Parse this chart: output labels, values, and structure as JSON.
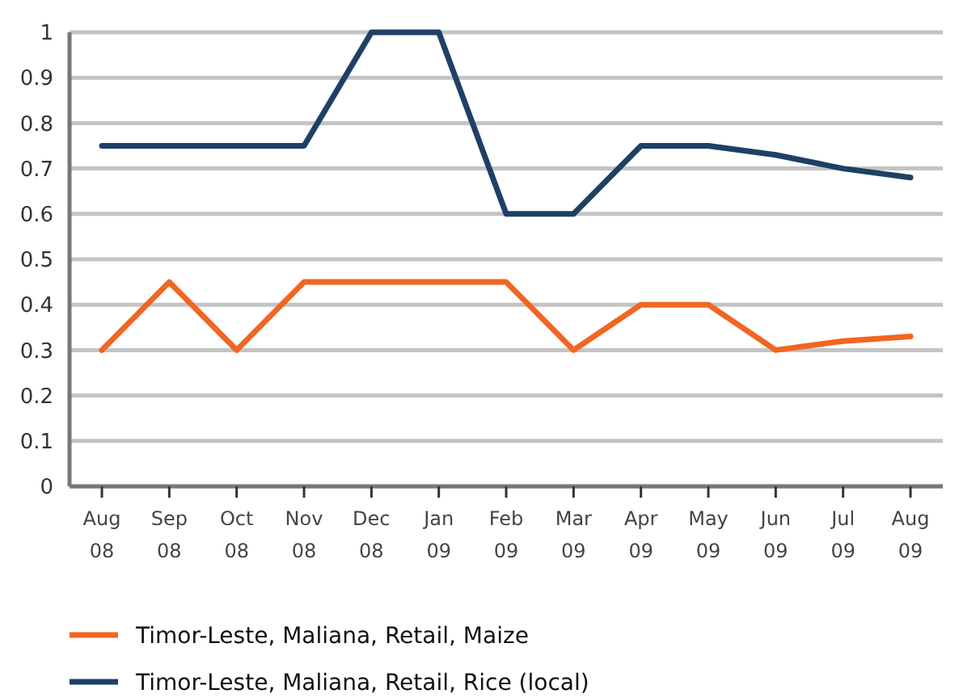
{
  "chart_data": {
    "type": "line",
    "categories": [
      "Aug 08",
      "Sep 08",
      "Oct 08",
      "Nov 08",
      "Dec 08",
      "Jan 09",
      "Feb 09",
      "Mar 09",
      "Apr 09",
      "May 09",
      "Jun 09",
      "Jul 09",
      "Aug 09"
    ],
    "series": [
      {
        "name": "Timor-Leste, Maliana, Retail, Maize",
        "color": "#f26522",
        "values": [
          0.3,
          0.45,
          0.3,
          0.45,
          0.45,
          0.45,
          0.45,
          0.3,
          0.4,
          0.4,
          0.3,
          0.32,
          0.33
        ]
      },
      {
        "name": "Timor-Leste, Maliana, Retail, Rice (local)",
        "color": "#1f3f66",
        "values": [
          0.75,
          0.75,
          0.75,
          0.75,
          1,
          1,
          0.6,
          0.6,
          0.75,
          0.75,
          0.73,
          0.7,
          0.68
        ]
      }
    ],
    "ylim": [
      0,
      1
    ],
    "yticks": [
      0,
      0.1,
      0.2,
      0.3,
      0.4,
      0.5,
      0.6,
      0.7,
      0.8,
      0.9,
      1
    ],
    "grid": "y",
    "legend": "bottom",
    "marker": "none",
    "line_style": "solid"
  }
}
